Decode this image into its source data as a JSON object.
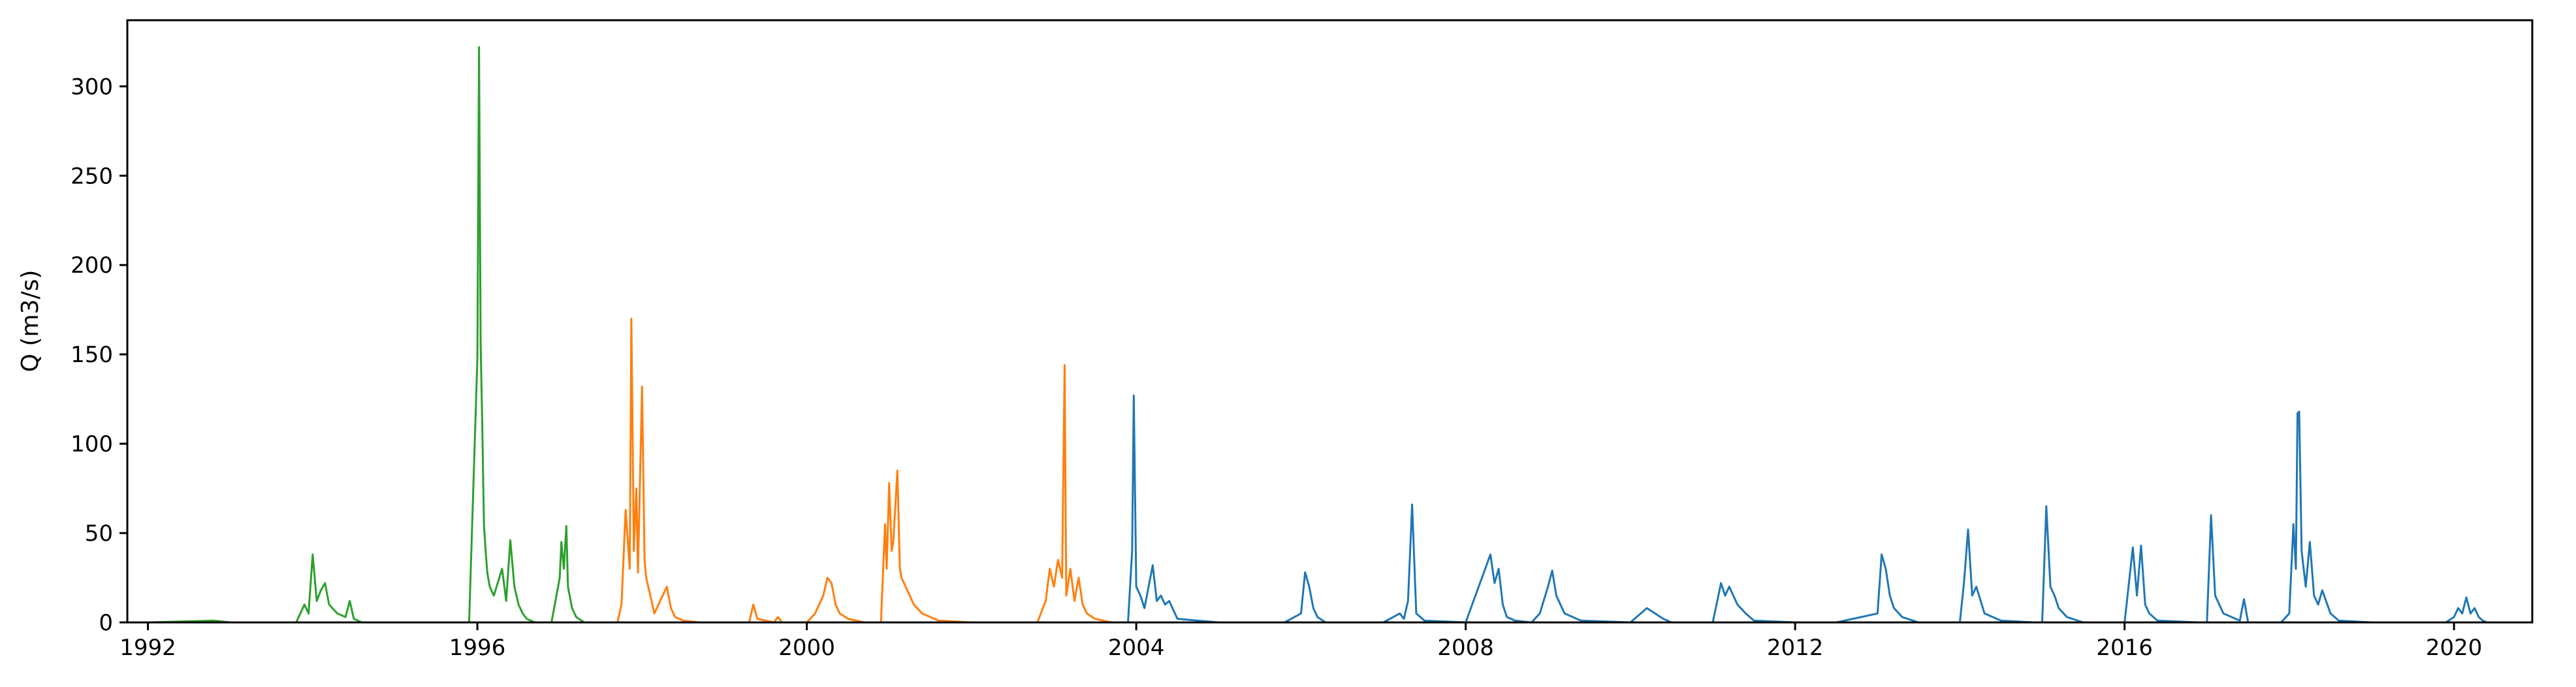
{
  "chart_data": {
    "type": "line",
    "title": "",
    "xlabel": "",
    "ylabel": "Q (m3/s)",
    "xlim": [
      1991.75,
      2020.95
    ],
    "ylim": [
      0,
      337
    ],
    "x_ticks": [
      1992,
      1996,
      2000,
      2004,
      2008,
      2012,
      2016,
      2020
    ],
    "x_tick_labels": [
      "1992",
      "1996",
      "2000",
      "2004",
      "2008",
      "2012",
      "2016",
      "2020"
    ],
    "y_ticks": [
      0,
      50,
      100,
      150,
      200,
      250,
      300
    ],
    "y_tick_labels": [
      "0",
      "50",
      "100",
      "150",
      "200",
      "250",
      "300"
    ],
    "grid": false,
    "legend": "none",
    "series": [
      {
        "color": "#2ca02c",
        "x": [
          1992.0,
          1992.8,
          1993.0,
          1993.8,
          1993.9,
          1993.95,
          1994.0,
          1994.05,
          1994.1,
          1994.15,
          1994.2,
          1994.3,
          1994.4,
          1994.45,
          1994.5,
          1994.6,
          1995.0,
          1995.5,
          1995.9,
          1996.0,
          1996.02,
          1996.04,
          1996.06,
          1996.08,
          1996.1,
          1996.12,
          1996.15,
          1996.2,
          1996.3,
          1996.35,
          1996.4,
          1996.45,
          1996.5,
          1996.55,
          1996.6,
          1996.7,
          1996.9,
          1997.0,
          1997.02,
          1997.05,
          1997.08,
          1997.1,
          1997.15,
          1997.2,
          1997.3,
          1997.5
        ],
        "y": [
          0,
          1,
          0,
          0,
          10,
          5,
          38,
          12,
          18,
          22,
          10,
          5,
          3,
          12,
          2,
          0,
          0,
          0,
          0,
          148,
          322,
          155,
          110,
          55,
          40,
          28,
          20,
          15,
          30,
          12,
          46,
          20,
          10,
          5,
          2,
          0,
          0,
          25,
          45,
          30,
          54,
          20,
          8,
          3,
          0,
          0
        ]
      },
      {
        "color": "#ff7f0e",
        "x": [
          1997.5,
          1997.7,
          1997.75,
          1997.8,
          1997.85,
          1997.87,
          1997.9,
          1997.93,
          1997.95,
          1998.0,
          1998.03,
          1998.05,
          1998.1,
          1998.15,
          1998.2,
          1998.3,
          1998.35,
          1998.4,
          1998.5,
          1998.7,
          1999.0,
          1999.3,
          1999.35,
          1999.4,
          1999.6,
          1999.65,
          1999.7,
          2000.0,
          2000.1,
          2000.2,
          2000.25,
          2000.3,
          2000.35,
          2000.4,
          2000.5,
          2000.7,
          2000.9,
          2000.95,
          2000.97,
          2001.0,
          2001.03,
          2001.05,
          2001.1,
          2001.13,
          2001.15,
          2001.2,
          2001.3,
          2001.4,
          2001.6,
          2002.0,
          2002.5,
          2002.8,
          2002.9,
          2002.95,
          2003.0,
          2003.05,
          2003.1,
          2003.13,
          2003.15,
          2003.2,
          2003.25,
          2003.3,
          2003.35,
          2003.4,
          2003.5,
          2003.7,
          2003.9
        ],
        "y": [
          0,
          0,
          10,
          63,
          30,
          170,
          40,
          75,
          28,
          132,
          35,
          25,
          15,
          5,
          10,
          20,
          8,
          3,
          1,
          0,
          0,
          0,
          10,
          2,
          0,
          3,
          0,
          0,
          5,
          15,
          25,
          22,
          10,
          5,
          2,
          0,
          0,
          55,
          30,
          78,
          40,
          45,
          85,
          30,
          25,
          20,
          10,
          5,
          1,
          0,
          0,
          0,
          12,
          30,
          20,
          35,
          25,
          144,
          15,
          30,
          12,
          25,
          10,
          5,
          2,
          0,
          0
        ]
      },
      {
        "color": "#1f77b4",
        "x": [
          2003.9,
          2003.95,
          2003.97,
          2004.0,
          2004.05,
          2004.1,
          2004.2,
          2004.25,
          2004.3,
          2004.35,
          2004.4,
          2004.5,
          2005.0,
          2005.8,
          2006.0,
          2006.05,
          2006.1,
          2006.15,
          2006.2,
          2006.3,
          2007.0,
          2007.2,
          2007.25,
          2007.3,
          2007.35,
          2007.4,
          2007.5,
          2008.0,
          2008.3,
          2008.35,
          2008.4,
          2008.45,
          2008.5,
          2008.6,
          2008.8,
          2008.9,
          2009.0,
          2009.05,
          2009.1,
          2009.2,
          2009.4,
          2010.0,
          2010.2,
          2010.3,
          2010.4,
          2010.5,
          2011.0,
          2011.1,
          2011.15,
          2011.2,
          2011.3,
          2011.4,
          2011.5,
          2012.0,
          2012.5,
          2013.0,
          2013.05,
          2013.1,
          2013.15,
          2013.2,
          2013.3,
          2013.5,
          2014.0,
          2014.05,
          2014.1,
          2014.15,
          2014.2,
          2014.3,
          2014.5,
          2014.9,
          2015.0,
          2015.05,
          2015.1,
          2015.15,
          2015.2,
          2015.3,
          2015.5,
          2016.0,
          2016.1,
          2016.15,
          2016.2,
          2016.25,
          2016.3,
          2016.4,
          2016.9,
          2017.0,
          2017.05,
          2017.1,
          2017.2,
          2017.4,
          2017.45,
          2017.5,
          2017.9,
          2018.0,
          2018.05,
          2018.08,
          2018.1,
          2018.12,
          2018.15,
          2018.2,
          2018.25,
          2018.3,
          2018.35,
          2018.4,
          2018.5,
          2018.6,
          2019.0,
          2019.5,
          2019.9,
          2020.0,
          2020.05,
          2020.1,
          2020.15,
          2020.2,
          2020.25,
          2020.3,
          2020.35,
          2020.4
        ],
        "y": [
          0,
          40,
          127,
          20,
          15,
          8,
          32,
          12,
          15,
          10,
          12,
          2,
          0,
          0,
          5,
          28,
          20,
          8,
          3,
          0,
          0,
          5,
          2,
          12,
          66,
          5,
          1,
          0,
          38,
          22,
          30,
          10,
          3,
          1,
          0,
          5,
          20,
          29,
          15,
          5,
          1,
          0,
          8,
          5,
          2,
          0,
          0,
          22,
          15,
          20,
          10,
          5,
          1,
          0,
          0,
          5,
          38,
          30,
          15,
          8,
          3,
          0,
          0,
          22,
          52,
          15,
          20,
          5,
          1,
          0,
          0,
          65,
          20,
          15,
          8,
          3,
          0,
          0,
          42,
          15,
          43,
          10,
          5,
          1,
          0,
          0,
          60,
          15,
          5,
          1,
          13,
          0,
          0,
          5,
          55,
          30,
          117,
          118,
          40,
          20,
          45,
          15,
          10,
          18,
          5,
          1,
          0,
          0,
          0,
          3,
          8,
          5,
          14,
          5,
          8,
          3,
          1,
          0
        ]
      }
    ]
  }
}
